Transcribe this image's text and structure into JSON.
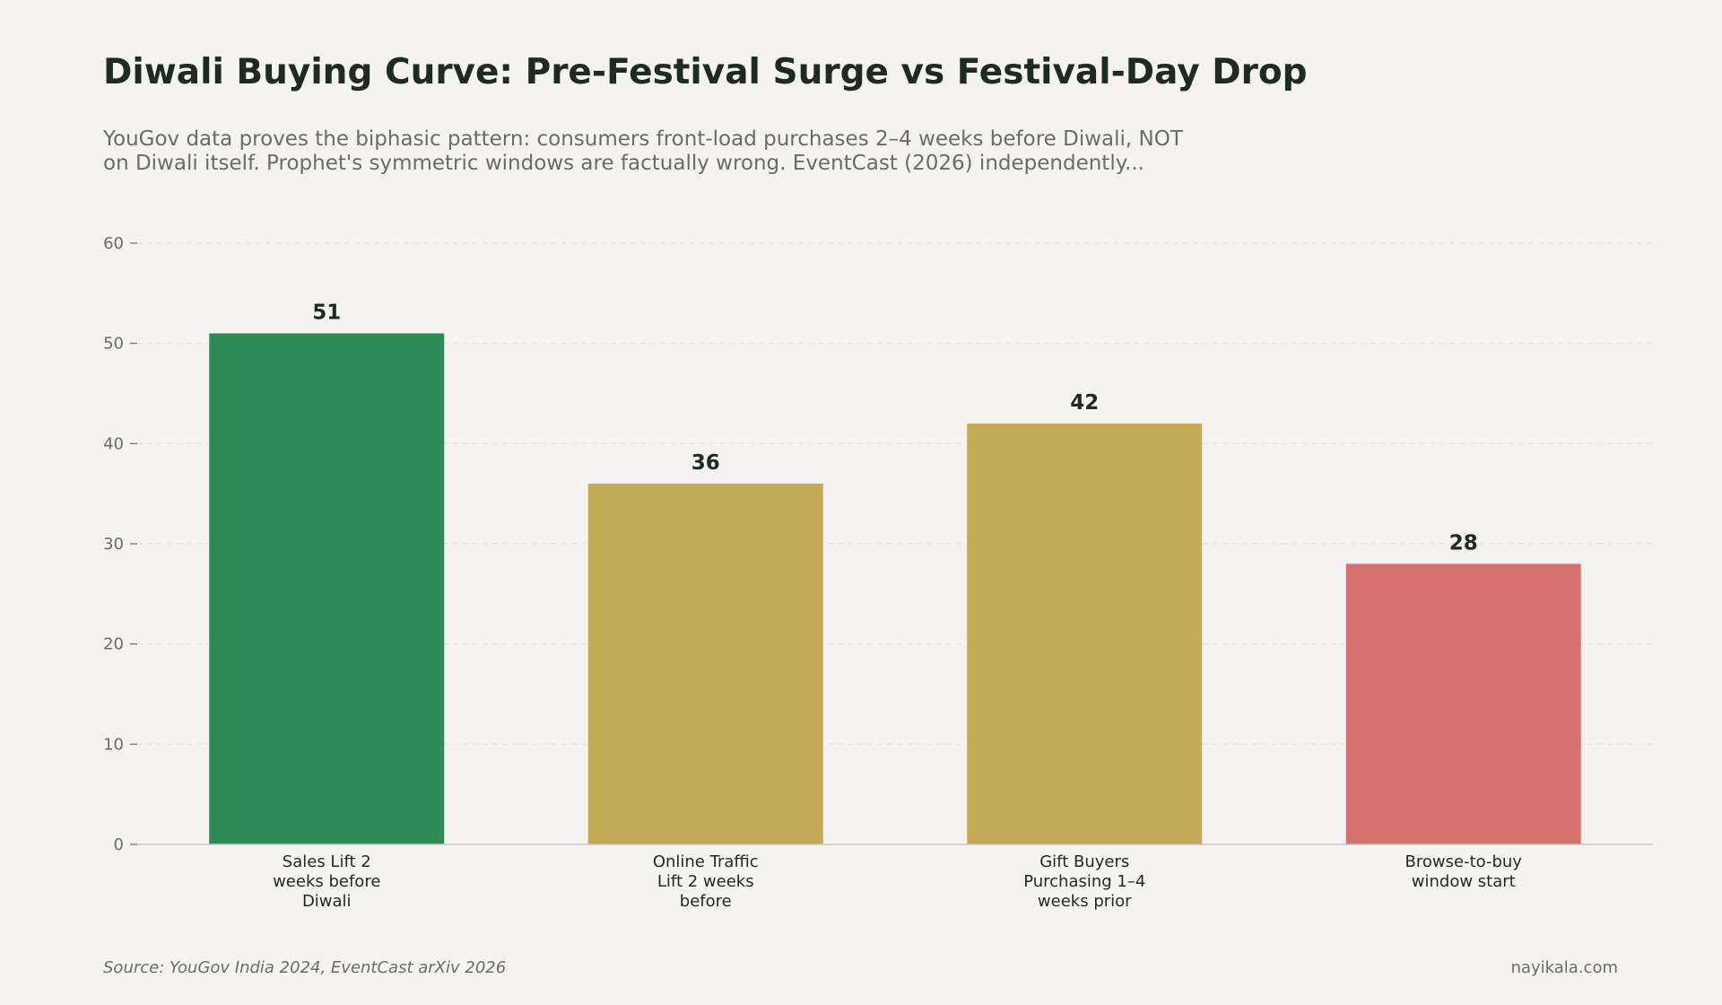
{
  "chart_data": {
    "type": "bar",
    "title": "Diwali Buying Curve: Pre-Festival Surge vs Festival-Day Drop",
    "subtitle_lines": [
      "YouGov data proves the biphasic pattern: consumers front-load purchases 2–4 weeks before Diwali, NOT",
      "on Diwali itself. Prophet's symmetric windows are factually wrong. EventCast (2026) independently..."
    ],
    "categories": [
      "Sales Lift 2 weeks before Diwali",
      "Online Traffic Lift 2 weeks before",
      "Gift Buyers Purchasing 1–4 weeks prior",
      "Browse-to-buy window start"
    ],
    "category_lines": [
      [
        "Sales Lift 2",
        "weeks before",
        "Diwali"
      ],
      [
        "Online Traffic",
        "Lift 2 weeks",
        "before"
      ],
      [
        "Gift Buyers",
        "Purchasing 1–4",
        "weeks prior"
      ],
      [
        "Browse-to-buy",
        "window start"
      ]
    ],
    "values": [
      51,
      36,
      42,
      28
    ],
    "data_labels": [
      "51",
      "36",
      "42",
      "28"
    ],
    "bar_colors": [
      "#2e8b57",
      "#c5aa57",
      "#c5aa57",
      "#d4716b"
    ],
    "xlabel": "",
    "ylabel": "",
    "ylim": [
      0,
      60
    ],
    "yticks": [
      0,
      10,
      20,
      30,
      40,
      50,
      60
    ],
    "ytick_labels": [
      "0",
      "10",
      "20",
      "30",
      "40",
      "50",
      "60"
    ],
    "grid": true,
    "legend": false
  },
  "footer": {
    "source": "Source: YouGov India 2024, EventCast arXiv 2026",
    "credit": "nayikala.com"
  }
}
